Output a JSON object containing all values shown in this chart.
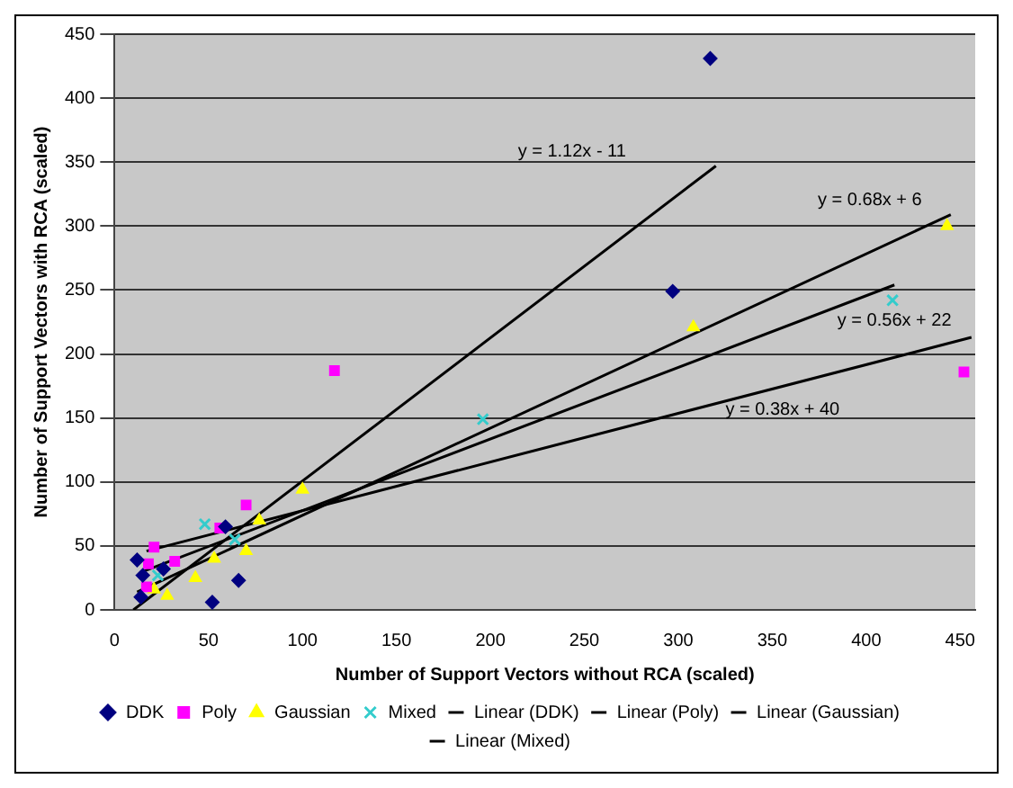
{
  "chart_data": {
    "type": "scatter",
    "xlabel": "Number of Support Vectors without RCA (scaled)",
    "ylabel": "Number of Support Vectors with RCA (scaled)",
    "xlim": [
      0,
      458
    ],
    "xticks": [
      0,
      50,
      100,
      150,
      200,
      250,
      300,
      350,
      400,
      450
    ],
    "ylim": [
      0,
      450
    ],
    "yticks": [
      0,
      50,
      100,
      150,
      200,
      250,
      300,
      350,
      400,
      450
    ],
    "grid": "y",
    "legend": "bottom",
    "series": [
      {
        "name": "DDK",
        "marker": "diamond",
        "color": "#000080",
        "x": [
          12,
          15,
          14,
          26,
          52,
          66,
          59,
          317,
          297
        ],
        "values": [
          39,
          27,
          10,
          32,
          6,
          23,
          65,
          431,
          249
        ]
      },
      {
        "name": "Poly",
        "marker": "square",
        "color": "#ff00ff",
        "x": [
          21,
          18,
          32,
          17,
          56,
          70,
          117,
          452
        ],
        "values": [
          49,
          36,
          38,
          18,
          64,
          82,
          187,
          186
        ]
      },
      {
        "name": "Gaussian",
        "marker": "triangle",
        "color": "#ffff00",
        "x": [
          21,
          28,
          43,
          53,
          70,
          77,
          100,
          308,
          443
        ],
        "values": [
          16,
          11,
          25,
          40,
          46,
          70,
          94,
          221,
          300
        ]
      },
      {
        "name": "Mixed",
        "marker": "cross",
        "color": "#33cccc",
        "x": [
          48,
          64,
          23,
          196,
          414
        ],
        "values": [
          67,
          55,
          27,
          149,
          242
        ]
      },
      {
        "name": "Linear (DDK)",
        "type": "line",
        "marker": "none",
        "color": "#000000",
        "x": [
          10,
          320
        ],
        "values": [
          0,
          347
        ]
      },
      {
        "name": "Linear (Poly)",
        "type": "line",
        "marker": "none",
        "color": "#000000",
        "x": [
          17,
          456
        ],
        "values": [
          46,
          213
        ]
      },
      {
        "name": "Linear (Gaussian)",
        "type": "line",
        "marker": "none",
        "color": "#000000",
        "x": [
          12,
          445
        ],
        "values": [
          14,
          309
        ]
      },
      {
        "name": "Linear (Mixed)",
        "type": "line",
        "marker": "none",
        "color": "#000000",
        "x": [
          15,
          415
        ],
        "values": [
          30,
          254
        ]
      }
    ],
    "annotations": [
      "y = 1.12x - 11",
      "y = 0.38x + 40",
      "y = 0.68x + 6",
      "y = 0.56x + 22"
    ]
  }
}
